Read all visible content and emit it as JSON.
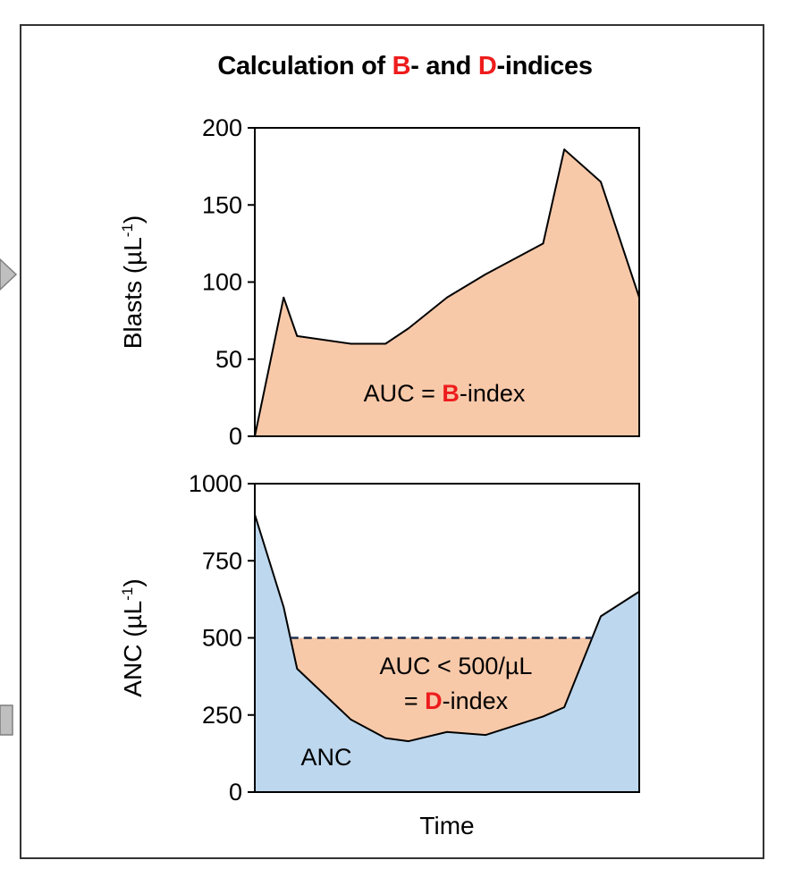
{
  "figure": {
    "title_parts": [
      "Calculation of ",
      "B",
      "- and ",
      "D",
      "-indices"
    ],
    "colors": {
      "frame": "#333333",
      "blasts_fill": "#f8c9a9",
      "anc_fill": "#bdd7ee",
      "d_index_fill": "#f8c9a9",
      "highlight": "#ee1c1c",
      "arrow_fill": "#bfbfbf"
    }
  },
  "chart_data": [
    {
      "type": "area",
      "name": "blasts",
      "ylabel": "Blasts (µL",
      "ylabel_sup": "-1",
      "ylabel_close": ")",
      "ylim": [
        0,
        200
      ],
      "yticks": [
        0,
        50,
        100,
        150,
        200
      ],
      "xlim": [
        0,
        20
      ],
      "x": [
        0,
        1.5,
        2.2,
        5,
        6.8,
        8,
        10,
        12,
        15,
        16.1,
        18,
        20
      ],
      "values": [
        0,
        90,
        65,
        60,
        60,
        70,
        90,
        105,
        125,
        186,
        165,
        90
      ],
      "annotation": {
        "prefix": "AUC = ",
        "highlight": "B",
        "suffix": "-index"
      }
    },
    {
      "type": "area",
      "name": "anc",
      "ylabel": "ANC (µL",
      "ylabel_sup": "-1",
      "ylabel_close": ")",
      "xlabel": "Time",
      "ylim": [
        0,
        1000
      ],
      "yticks": [
        0,
        250,
        500,
        750,
        1000
      ],
      "xlim": [
        0,
        20
      ],
      "x": [
        0,
        1.5,
        2.2,
        5,
        6.8,
        8,
        10,
        12,
        15,
        16.1,
        18,
        20
      ],
      "values": [
        900,
        600,
        400,
        235,
        175,
        165,
        195,
        185,
        245,
        275,
        570,
        650
      ],
      "threshold": 500,
      "series_label": "ANC",
      "annotation": {
        "line1": "AUC < 500/µL",
        "line2_prefix": "= ",
        "highlight": "D",
        "line2_suffix": "-index"
      }
    }
  ]
}
